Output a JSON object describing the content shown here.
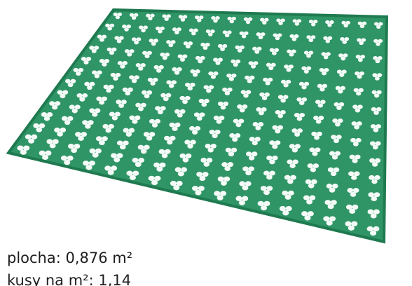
{
  "caption": {
    "lines": [
      "plocha: 0,876 m²",
      "kusy na m²: 1,14"
    ]
  }
}
